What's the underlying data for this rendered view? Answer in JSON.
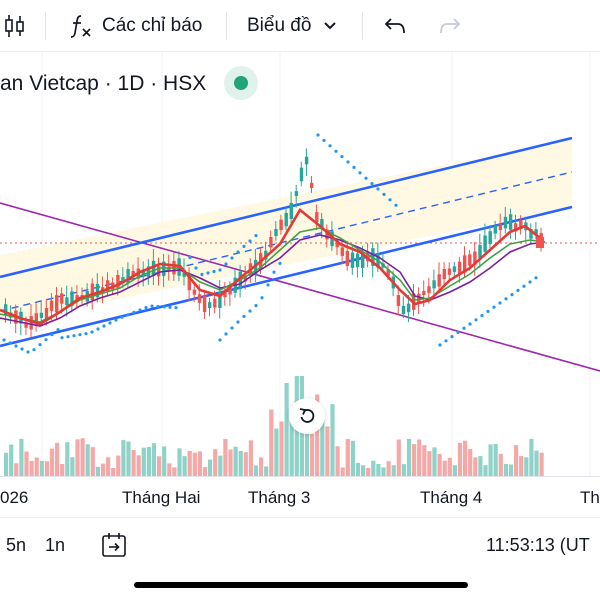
{
  "toolbar": {
    "candle_icon": "candlestick-icon",
    "indicators_label": "Các chỉ báo",
    "chart_type_label": "Biểu đồ",
    "undo_icon": "undo-icon",
    "redo_icon": "redo-icon"
  },
  "legend": {
    "symbol_text": "an Vietcap · 1D · HSX",
    "status_color": "#22a37a"
  },
  "x_axis": {
    "labels": [
      "026",
      "Tháng Hai",
      "Tháng 3",
      "Tháng 4",
      "Th"
    ]
  },
  "bottom_bar": {
    "range_5n": "5n",
    "range_1n": "1n",
    "time_text": "11:53:13 (UT"
  },
  "colors": {
    "up": "#26a69a",
    "down": "#ef5350",
    "channel": "#2962ff",
    "trendline": "#9c27b0",
    "parabolic_sar": "#2196f3",
    "price_line": "#ef5350"
  }
}
